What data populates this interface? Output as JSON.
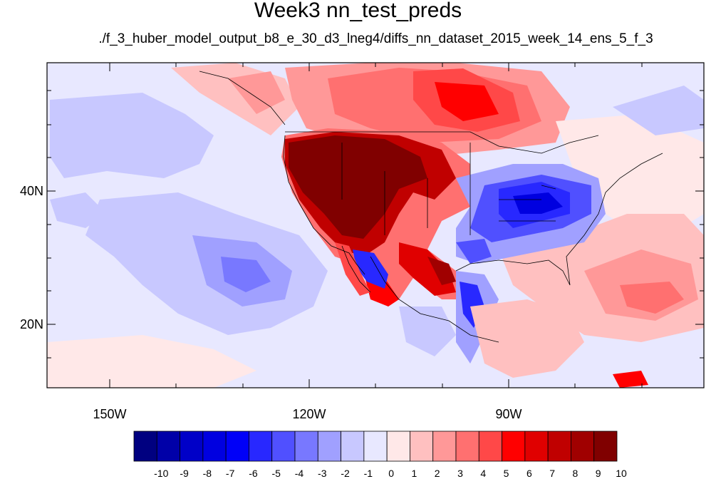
{
  "title": "Week3 nn_test_preds",
  "subtitle": "./f_3_huber_model_output_b8_e_30_d3_lneg4/diffs_nn_dataset_2015_week_14_ens_5_f_3",
  "axes": {
    "lat_labels": [
      "40N",
      "20N"
    ],
    "lon_labels": [
      "150W",
      "120W",
      "90W"
    ]
  },
  "colorbar": {
    "labels": [
      "-10",
      "-9",
      "-8",
      "-7",
      "-6",
      "-5",
      "-4",
      "-3",
      "-2",
      "-1",
      "0",
      "1",
      "2",
      "3",
      "4",
      "5",
      "6",
      "7",
      "8",
      "9",
      "10"
    ],
    "colors": [
      "#000080",
      "#0000a8",
      "#0000c8",
      "#0000e0",
      "#0000f8",
      "#2828ff",
      "#5050ff",
      "#7878ff",
      "#a0a0ff",
      "#c8c8ff",
      "#e8e8ff",
      "#ffe8e8",
      "#ffc0c0",
      "#ff9898",
      "#ff7070",
      "#ff4848",
      "#ff0000",
      "#e00000",
      "#c00000",
      "#a00000",
      "#800000"
    ]
  }
}
